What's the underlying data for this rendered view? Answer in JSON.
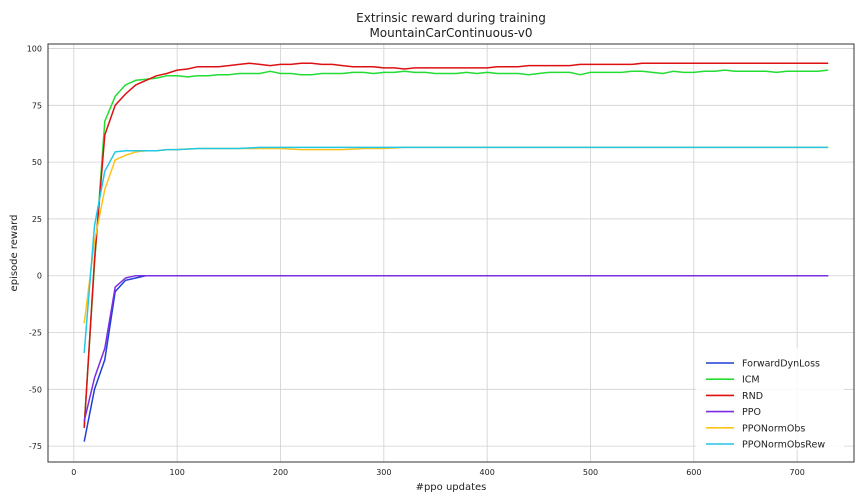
{
  "chart_data": {
    "type": "line",
    "title": "Extrinsic reward during training",
    "subtitle": "MountainCarContinuous-v0",
    "xlabel": "#ppo updates",
    "ylabel": "episode reward",
    "xlim": [
      -25,
      755
    ],
    "ylim": [
      -82,
      102
    ],
    "xticks": [
      0,
      100,
      200,
      300,
      400,
      500,
      600,
      700
    ],
    "yticks": [
      -75,
      -50,
      -25,
      0,
      25,
      50,
      75,
      100
    ],
    "grid": true,
    "legend_position": "lower-right",
    "series": [
      {
        "name": "ForwardDynLoss",
        "color": "#1f3fd6",
        "x": [
          10,
          20,
          30,
          40,
          50,
          60,
          70,
          80,
          100,
          150,
          200,
          300,
          400,
          500,
          600,
          700,
          730
        ],
        "y": [
          -73,
          -50,
          -37,
          -7,
          -2,
          -1,
          0,
          0,
          0,
          0,
          0,
          0,
          0,
          0,
          0,
          0,
          0
        ]
      },
      {
        "name": "ICM",
        "color": "#22dd33",
        "x": [
          10,
          20,
          30,
          40,
          50,
          60,
          70,
          80,
          90,
          100,
          110,
          120,
          130,
          140,
          150,
          160,
          170,
          180,
          190,
          200,
          210,
          220,
          230,
          240,
          250,
          260,
          270,
          280,
          290,
          300,
          310,
          320,
          330,
          340,
          350,
          360,
          370,
          380,
          390,
          400,
          410,
          420,
          430,
          440,
          450,
          460,
          470,
          480,
          490,
          500,
          510,
          520,
          530,
          540,
          550,
          560,
          570,
          580,
          590,
          600,
          610,
          620,
          630,
          640,
          650,
          660,
          670,
          680,
          690,
          700,
          710,
          720,
          730
        ],
        "y": [
          -66,
          5,
          68,
          79,
          84,
          86,
          86.5,
          87,
          88,
          88,
          87.5,
          88,
          88,
          88.5,
          88.5,
          89,
          89,
          89,
          90,
          89,
          89,
          88.5,
          88.5,
          89,
          89,
          89,
          89.5,
          89.5,
          89,
          89.5,
          89.5,
          90,
          89.5,
          89.5,
          89,
          89,
          89,
          89.5,
          89,
          89.5,
          89,
          89,
          89,
          88.5,
          89,
          89.5,
          89.5,
          89.5,
          88.5,
          89.5,
          89.5,
          89.5,
          89.5,
          90,
          90,
          89.5,
          89,
          90,
          89.5,
          89.5,
          90,
          90,
          90.5,
          90,
          90,
          90,
          90,
          89.5,
          90,
          90,
          90,
          90,
          90.5
        ]
      },
      {
        "name": "RND",
        "color": "#dd1111",
        "x": [
          10,
          20,
          30,
          40,
          50,
          60,
          70,
          80,
          90,
          100,
          110,
          120,
          130,
          140,
          150,
          160,
          170,
          180,
          190,
          200,
          210,
          220,
          230,
          240,
          250,
          260,
          270,
          280,
          290,
          300,
          310,
          320,
          330,
          340,
          350,
          360,
          370,
          380,
          390,
          400,
          410,
          420,
          430,
          440,
          450,
          460,
          470,
          480,
          490,
          500,
          510,
          520,
          530,
          540,
          550,
          560,
          570,
          580,
          590,
          600,
          610,
          620,
          630,
          640,
          650,
          660,
          670,
          680,
          690,
          700,
          710,
          720,
          730
        ],
        "y": [
          -67,
          7,
          62,
          75,
          80,
          84,
          86,
          88,
          89,
          90.5,
          91,
          92,
          92,
          92,
          92.5,
          93,
          93.5,
          93,
          92.5,
          93,
          93,
          93.5,
          93.5,
          93,
          93,
          92.5,
          92,
          92,
          92,
          91.5,
          91.5,
          91,
          91.5,
          91.5,
          91.5,
          91.5,
          91.5,
          91.5,
          91.5,
          91.5,
          92,
          92,
          92,
          92.5,
          92.5,
          92.5,
          92.5,
          92.5,
          93,
          93,
          93,
          93,
          93,
          93,
          93.5,
          93.5,
          93.5,
          93.5,
          93.5,
          93.5,
          93.5,
          93.5,
          93.5,
          93.5,
          93.5,
          93.5,
          93.5,
          93.5,
          93.5,
          93.5,
          93.5,
          93.5,
          93.5
        ]
      },
      {
        "name": "PPO",
        "color": "#7a2ee0",
        "x": [
          10,
          20,
          30,
          40,
          50,
          60,
          70,
          80,
          100,
          150,
          200,
          300,
          400,
          500,
          600,
          700,
          730
        ],
        "y": [
          -64,
          -45,
          -32,
          -5,
          -1,
          0,
          0,
          0,
          0,
          0,
          0,
          0,
          0,
          0,
          0,
          0,
          0
        ]
      },
      {
        "name": "PPONormObs",
        "color": "#ffc21a",
        "x": [
          10,
          20,
          30,
          40,
          50,
          60,
          70,
          80,
          90,
          100,
          120,
          140,
          160,
          180,
          200,
          220,
          240,
          260,
          280,
          300,
          320,
          340,
          360,
          380,
          400,
          450,
          500,
          550,
          600,
          650,
          700,
          730
        ],
        "y": [
          -21,
          15,
          38,
          51,
          53,
          54.5,
          55,
          55,
          55.5,
          55.5,
          56,
          56,
          56,
          56,
          56,
          55.5,
          55.5,
          55.5,
          56,
          56,
          56.5,
          56.5,
          56.5,
          56.5,
          56.5,
          56.5,
          56.5,
          56.5,
          56.5,
          56.5,
          56.5,
          56.5
        ]
      },
      {
        "name": "PPONormObsRew",
        "color": "#22c8e6",
        "x": [
          10,
          20,
          30,
          40,
          50,
          60,
          70,
          80,
          90,
          100,
          120,
          140,
          160,
          180,
          200,
          220,
          240,
          260,
          280,
          300,
          320,
          340,
          360,
          380,
          400,
          450,
          500,
          550,
          600,
          650,
          700,
          730
        ],
        "y": [
          -34,
          22,
          46,
          54.5,
          55,
          55,
          55,
          55,
          55.5,
          55.5,
          56,
          56,
          56,
          56.5,
          56.5,
          56.5,
          56.5,
          56.5,
          56.5,
          56.5,
          56.5,
          56.5,
          56.5,
          56.5,
          56.5,
          56.5,
          56.5,
          56.5,
          56.5,
          56.5,
          56.5,
          56.5
        ]
      }
    ]
  }
}
